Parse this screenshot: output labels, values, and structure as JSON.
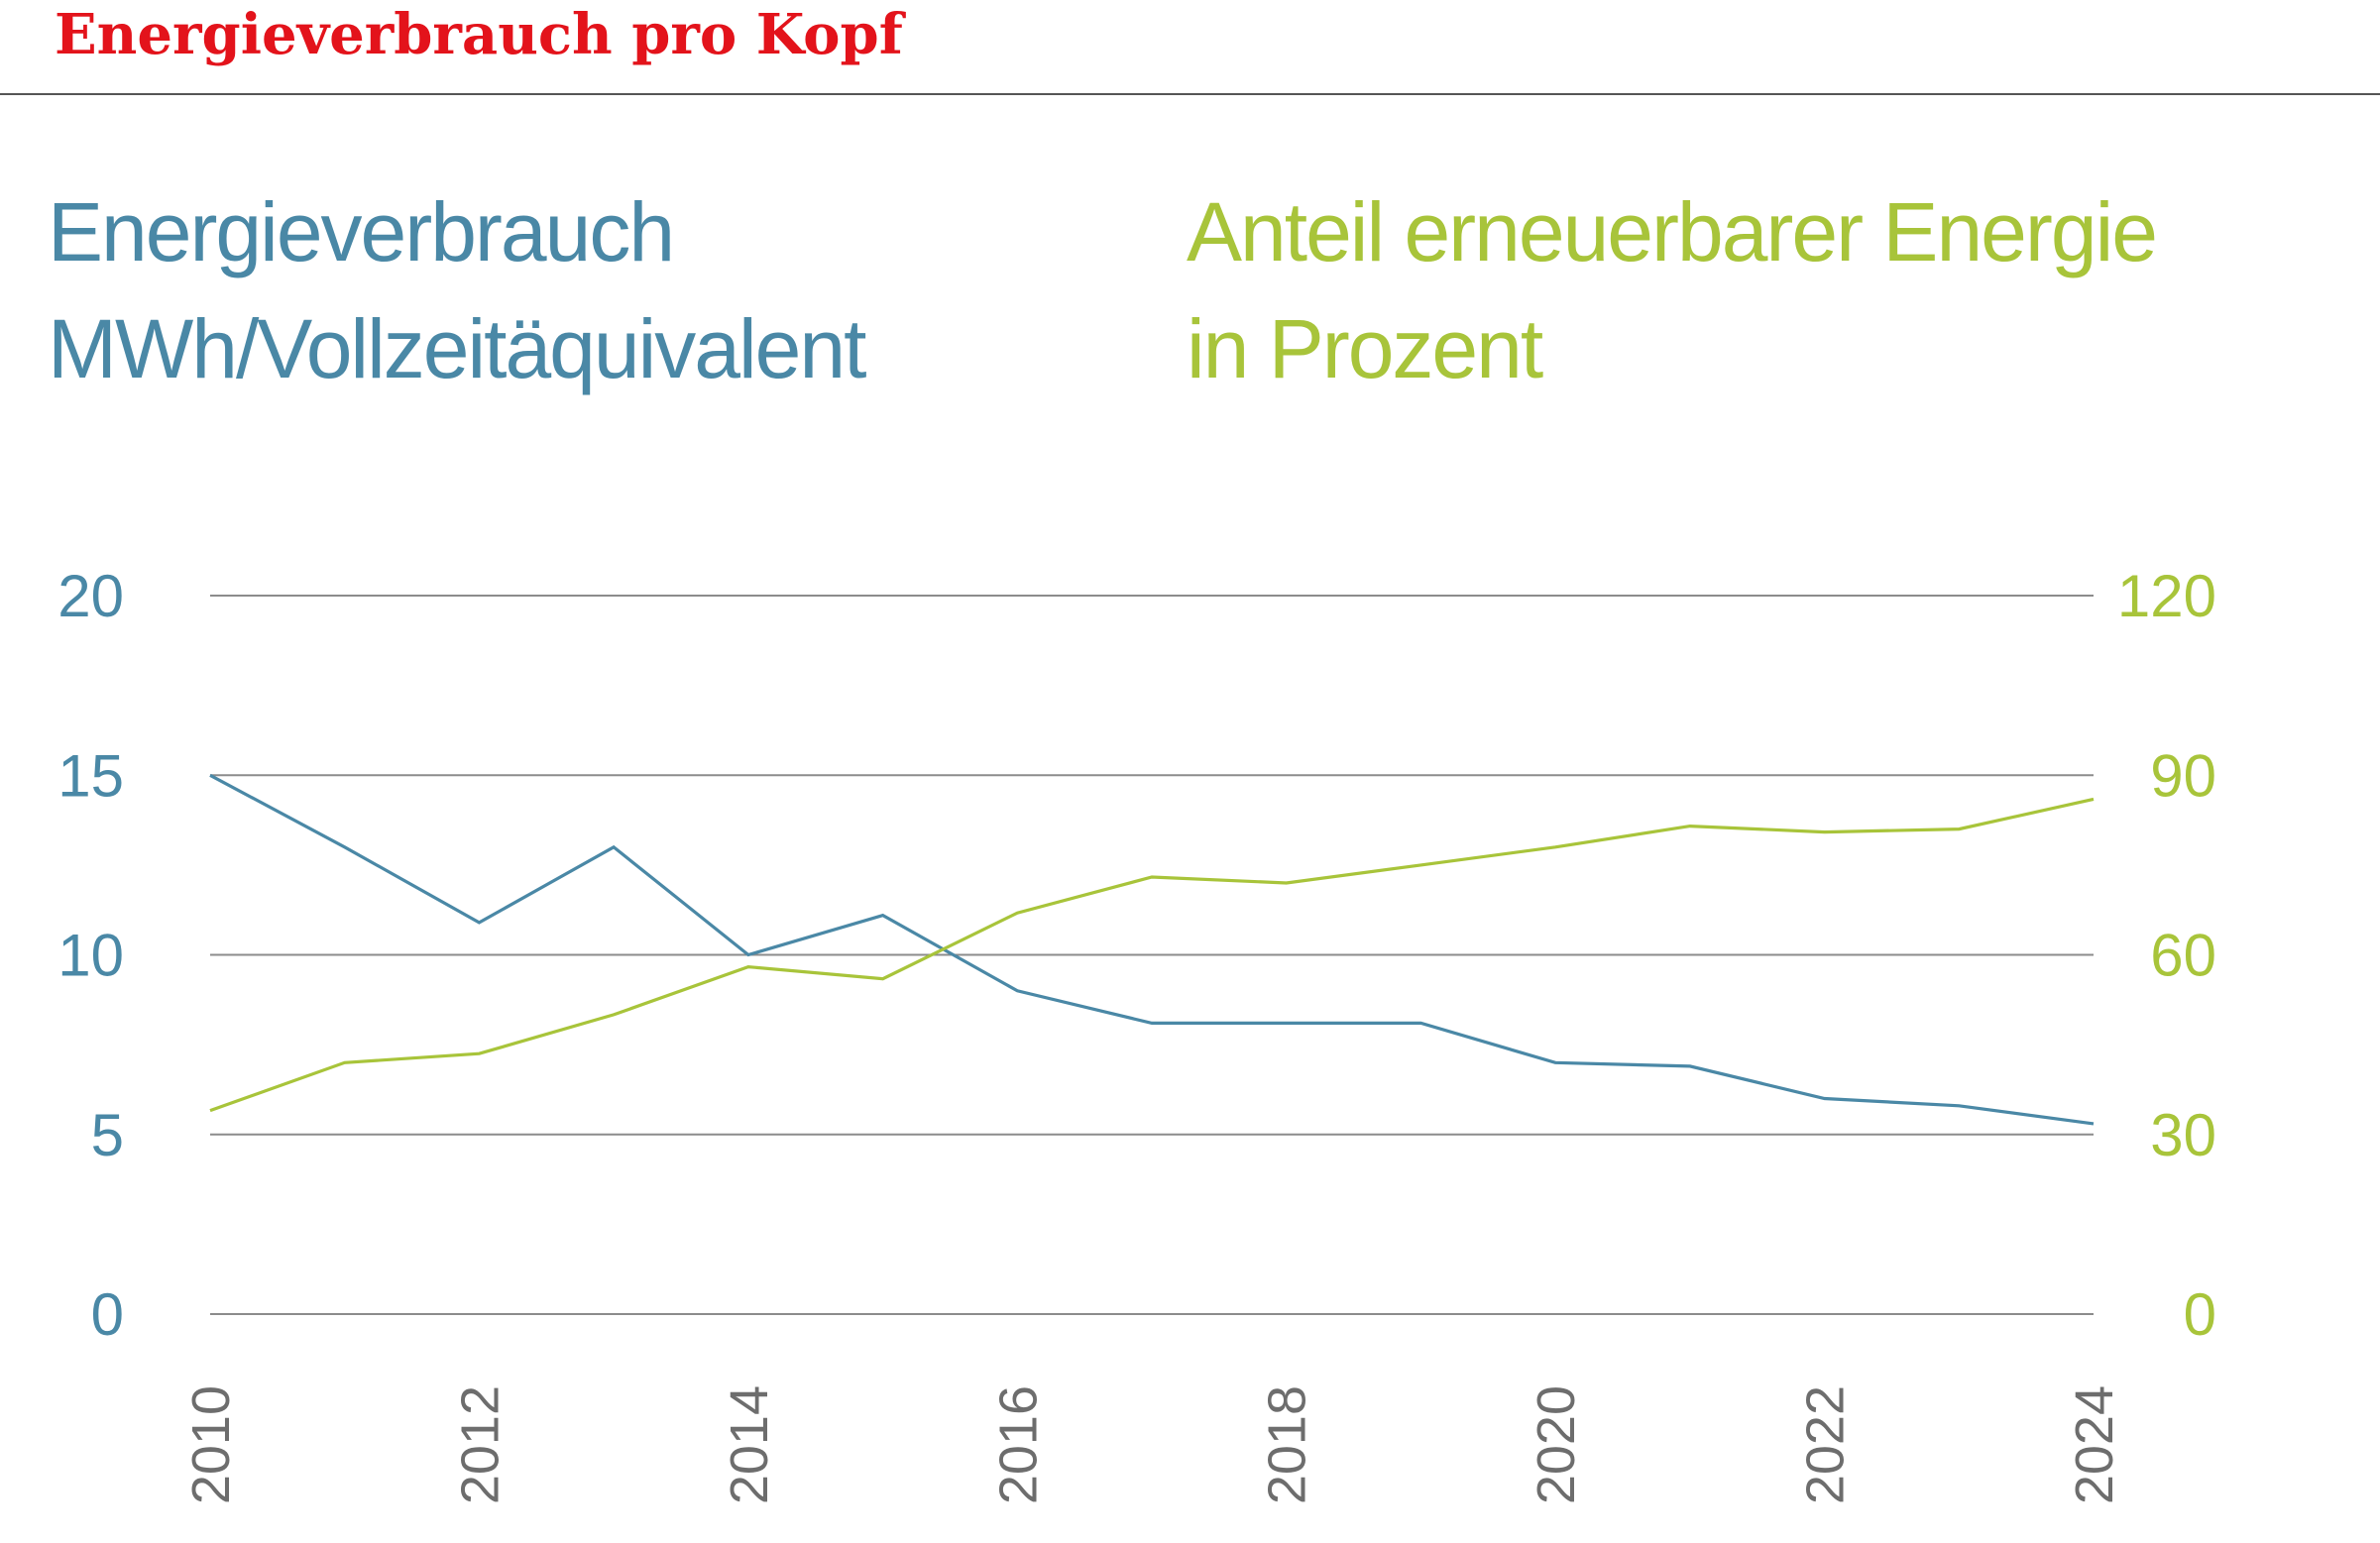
{
  "header": {
    "title": "Energieverbrauch pro Kopf"
  },
  "chart_data": {
    "type": "line",
    "title": "Energieverbrauch pro Kopf",
    "left_axis": {
      "label_line1": "Energieverbrauch",
      "label_line2": "MWh/Vollzeitäquivalent",
      "ylim": [
        0,
        20
      ],
      "ticks": [
        "0",
        "5",
        "10",
        "15",
        "20"
      ],
      "color": "#4a88a6"
    },
    "right_axis": {
      "label_line1": "Anteil erneuerbarer Energie",
      "label_line2": "in Prozent",
      "ylim": [
        0,
        120
      ],
      "ticks": [
        "0",
        "30",
        "60",
        "90",
        "120"
      ],
      "color": "#a8c43a"
    },
    "x_axis": {
      "xlim": [
        2010,
        2024
      ],
      "ticks": [
        "2010",
        "2012",
        "2014",
        "2016",
        "2018",
        "2020",
        "2022",
        "2024"
      ]
    },
    "grid": true,
    "series": [
      {
        "axis": "left",
        "color": "#4a88a6",
        "x": [
          2010,
          2011,
          2012,
          2013,
          2014,
          2015,
          2016,
          2017,
          2018,
          2019,
          2020,
          2021,
          2022,
          2023,
          2024
        ],
        "values": [
          15,
          13,
          10.9,
          13,
          10,
          11.1,
          9,
          8.1,
          8.1,
          8.1,
          7,
          6.9,
          6,
          5.8,
          5.3
        ]
      },
      {
        "axis": "right",
        "color": "#a8c43a",
        "x": [
          2010,
          2011,
          2012,
          2013,
          2014,
          2015,
          2016,
          2017,
          2018,
          2019,
          2020,
          2021,
          2022,
          2023,
          2024
        ],
        "values": [
          34,
          42,
          43.5,
          50,
          58,
          56,
          67,
          73,
          72,
          75,
          78,
          81.5,
          80.5,
          81,
          86
        ]
      }
    ]
  }
}
